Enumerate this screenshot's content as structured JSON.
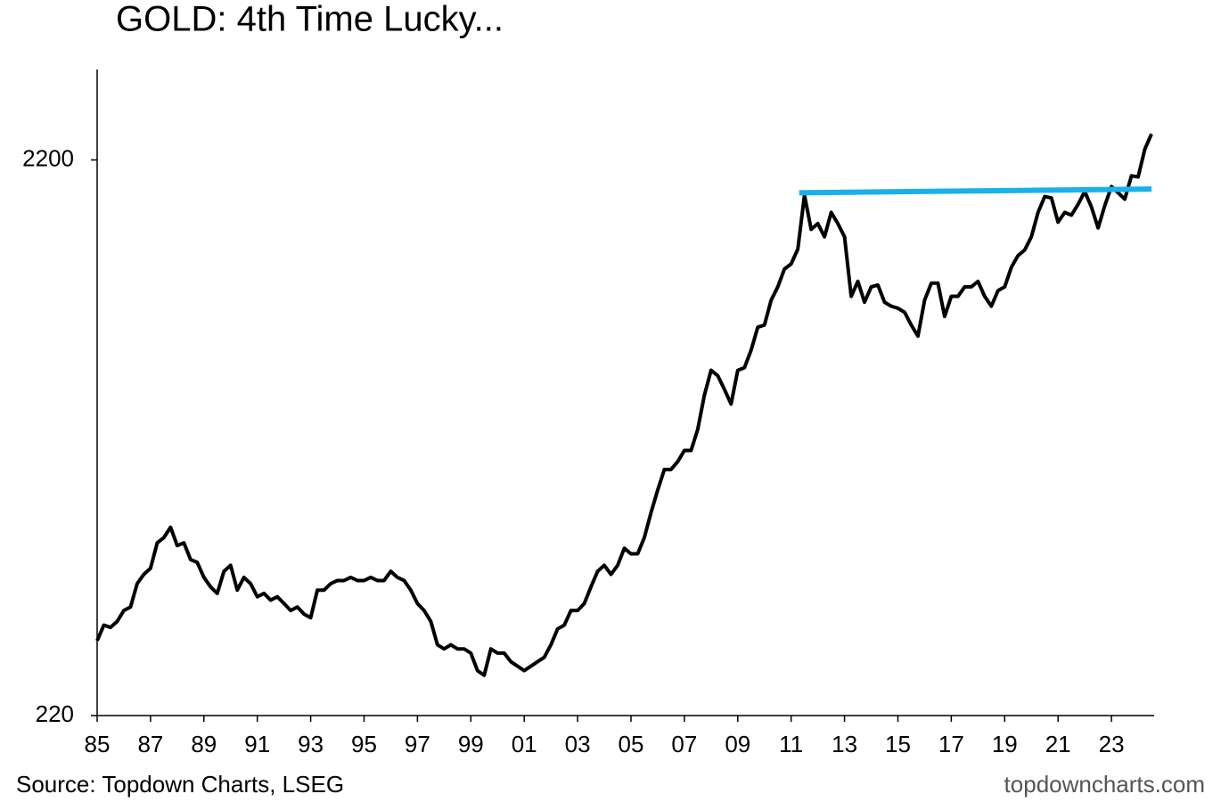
{
  "chart_data": {
    "type": "line",
    "title": "GOLD: 4th Time Lucky...",
    "source": "Source: Topdown Charts, LSEG",
    "watermark": "topdowncharts.com",
    "yscale": "log",
    "ylim": [
      220,
      3200
    ],
    "yticks": [
      220,
      2200
    ],
    "xlim": [
      1985,
      2024.6
    ],
    "xticks": [
      {
        "value": 1985,
        "label": "85"
      },
      {
        "value": 1987,
        "label": "87"
      },
      {
        "value": 1989,
        "label": "89"
      },
      {
        "value": 1991,
        "label": "91"
      },
      {
        "value": 1993,
        "label": "93"
      },
      {
        "value": 1995,
        "label": "95"
      },
      {
        "value": 1997,
        "label": "97"
      },
      {
        "value": 1999,
        "label": "99"
      },
      {
        "value": 2001,
        "label": "01"
      },
      {
        "value": 2003,
        "label": "03"
      },
      {
        "value": 2005,
        "label": "05"
      },
      {
        "value": 2007,
        "label": "07"
      },
      {
        "value": 2009,
        "label": "09"
      },
      {
        "value": 2011,
        "label": "11"
      },
      {
        "value": 2013,
        "label": "13"
      },
      {
        "value": 2015,
        "label": "15"
      },
      {
        "value": 2017,
        "label": "17"
      },
      {
        "value": 2019,
        "label": "19"
      },
      {
        "value": 2021,
        "label": "21"
      },
      {
        "value": 2023,
        "label": "23"
      }
    ],
    "series": [
      {
        "color": "#000000",
        "width": 4,
        "x": [
          1985,
          1985.25,
          1985.5,
          1985.75,
          1986,
          1986.25,
          1986.5,
          1986.75,
          1987,
          1987.25,
          1987.5,
          1987.75,
          1988,
          1988.25,
          1988.5,
          1988.75,
          1989,
          1989.25,
          1989.5,
          1989.75,
          1990,
          1990.25,
          1990.5,
          1990.75,
          1991,
          1991.25,
          1991.5,
          1991.75,
          1992,
          1992.25,
          1992.5,
          1992.75,
          1993,
          1993.25,
          1993.5,
          1993.75,
          1994,
          1994.25,
          1994.5,
          1994.75,
          1995,
          1995.25,
          1995.5,
          1995.75,
          1996,
          1996.25,
          1996.5,
          1996.75,
          1997,
          1997.25,
          1997.5,
          1997.75,
          1998,
          1998.25,
          1998.5,
          1998.75,
          1999,
          1999.25,
          1999.5,
          1999.75,
          2000,
          2000.25,
          2000.5,
          2000.75,
          2001,
          2001.25,
          2001.5,
          2001.75,
          2002,
          2002.25,
          2002.5,
          2002.75,
          2003,
          2003.25,
          2003.5,
          2003.75,
          2004,
          2004.25,
          2004.5,
          2004.75,
          2005,
          2005.25,
          2005.5,
          2005.75,
          2006,
          2006.25,
          2006.5,
          2006.75,
          2007,
          2007.25,
          2007.5,
          2007.75,
          2008,
          2008.25,
          2008.5,
          2008.75,
          2009,
          2009.25,
          2009.5,
          2009.75,
          2010,
          2010.25,
          2010.5,
          2010.75,
          2011,
          2011.25,
          2011.5,
          2011.75,
          2012,
          2012.25,
          2012.5,
          2012.75,
          2013,
          2013.25,
          2013.5,
          2013.75,
          2014,
          2014.25,
          2014.5,
          2014.75,
          2015,
          2015.25,
          2015.5,
          2015.75,
          2016,
          2016.25,
          2016.5,
          2016.75,
          2017,
          2017.25,
          2017.5,
          2017.75,
          2018,
          2018.25,
          2018.5,
          2018.75,
          2019,
          2019.25,
          2019.5,
          2019.75,
          2020,
          2020.25,
          2020.5,
          2020.75,
          2021,
          2021.25,
          2021.5,
          2021.75,
          2022,
          2022.25,
          2022.5,
          2022.75,
          2023,
          2023.25,
          2023.5,
          2023.75,
          2024,
          2024.25,
          2024.5
        ],
        "values": [
          300,
          320,
          317,
          325,
          340,
          345,
          380,
          395,
          405,
          450,
          460,
          480,
          445,
          450,
          420,
          415,
          390,
          375,
          365,
          400,
          410,
          370,
          390,
          380,
          360,
          365,
          355,
          360,
          350,
          340,
          345,
          335,
          330,
          370,
          370,
          380,
          385,
          385,
          390,
          385,
          385,
          390,
          385,
          385,
          400,
          390,
          385,
          370,
          350,
          340,
          325,
          295,
          290,
          295,
          290,
          290,
          285,
          265,
          260,
          290,
          285,
          285,
          275,
          270,
          265,
          270,
          275,
          280,
          295,
          315,
          320,
          340,
          340,
          350,
          375,
          400,
          410,
          395,
          410,
          440,
          430,
          430,
          460,
          510,
          560,
          610,
          610,
          630,
          660,
          660,
          720,
          830,
          920,
          900,
          850,
          800,
          920,
          930,
          1000,
          1100,
          1110,
          1230,
          1300,
          1400,
          1430,
          1520,
          1900,
          1650,
          1690,
          1600,
          1770,
          1690,
          1600,
          1250,
          1330,
          1220,
          1300,
          1310,
          1220,
          1200,
          1190,
          1170,
          1110,
          1060,
          1230,
          1320,
          1320,
          1150,
          1250,
          1250,
          1300,
          1300,
          1330,
          1250,
          1200,
          1280,
          1300,
          1410,
          1480,
          1515,
          1600,
          1770,
          1890,
          1880,
          1700,
          1770,
          1750,
          1830,
          1930,
          1810,
          1660,
          1820,
          1970,
          1920,
          1870,
          2060,
          2050,
          2300,
          2450
        ]
      },
      {
        "color": "#1ab0ea",
        "width": 6,
        "x": [
          2011.3,
          2024.5
        ],
        "values": [
          1920,
          1950
        ]
      }
    ]
  }
}
